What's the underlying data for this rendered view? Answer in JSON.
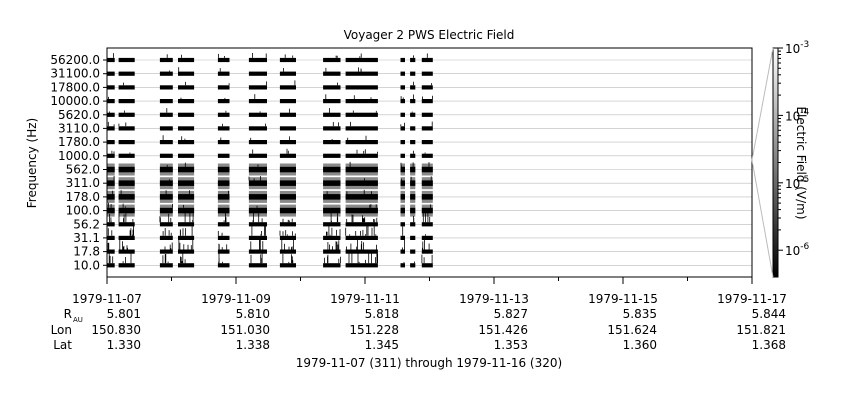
{
  "chart_data": {
    "type": "heatmap",
    "title": "Voyager 2 PWS Electric Field",
    "ylabel": "Frequency (Hz)",
    "colorbar_label": "Electric Field (V/m)",
    "subtitle": "1979-11-07 (311) through 1979-11-16 (320)",
    "x_range": [
      "1979-11-07",
      "1979-11-17"
    ],
    "x_ticks": [
      "1979-11-07",
      "1979-11-09",
      "1979-11-11",
      "1979-11-13",
      "1979-11-15",
      "1979-11-17"
    ],
    "y_ticks": [
      "56200.0",
      "31100.0",
      "17800.0",
      "10000.0",
      "5620.0",
      "3110.0",
      "1780.0",
      "1000.0",
      "562.0",
      "311.0",
      "178.0",
      "100.0",
      "56.2",
      "31.1",
      "17.8",
      "10.0"
    ],
    "colorbar": {
      "scale": "log",
      "range": [
        4e-07,
        0.001
      ],
      "ticks": [
        {
          "base": "10",
          "exp": "-3",
          "value": 0.001
        },
        {
          "base": "10",
          "exp": "-4",
          "value": 0.0001
        },
        {
          "base": "10",
          "exp": "-5",
          "value": 1e-05
        },
        {
          "base": "10",
          "exp": "-6",
          "value": 1e-06
        }
      ]
    },
    "data_segments_days": [
      [
        0.0,
        0.12
      ],
      [
        0.18,
        0.43
      ],
      [
        0.82,
        1.02
      ],
      [
        1.1,
        1.35
      ],
      [
        1.72,
        1.9
      ],
      [
        2.2,
        2.48
      ],
      [
        2.68,
        2.93
      ],
      [
        3.35,
        3.62
      ],
      [
        3.7,
        4.2
      ],
      [
        4.55,
        4.62
      ],
      [
        4.7,
        4.78
      ],
      [
        4.88,
        5.05
      ]
    ],
    "ephemeris": {
      "labels": [
        "R",
        "Lon",
        "Lat"
      ],
      "r_subscript": "AU",
      "rows": [
        [
          "5.801",
          "5.810",
          "5.818",
          "5.827",
          "5.835",
          "5.844"
        ],
        [
          "150.830",
          "151.030",
          "151.228",
          "151.426",
          "151.624",
          "151.821"
        ],
        [
          "1.330",
          "1.338",
          "1.345",
          "1.353",
          "1.360",
          "1.368"
        ]
      ]
    },
    "grid": true
  }
}
